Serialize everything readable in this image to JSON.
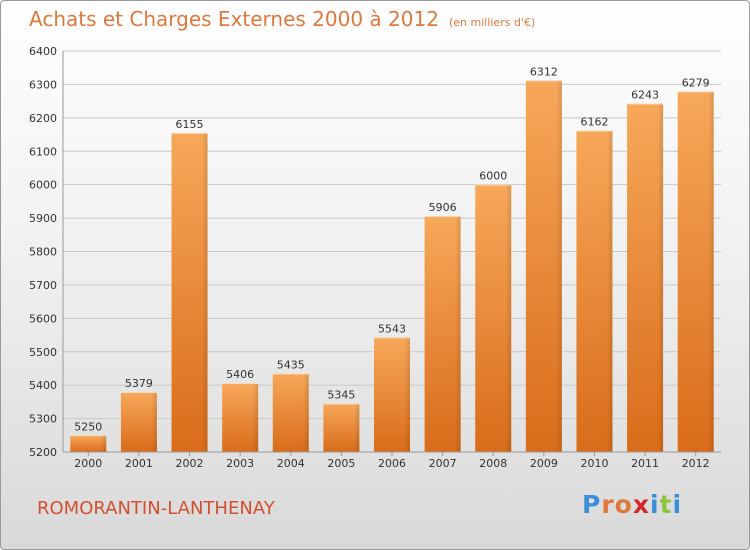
{
  "header": {
    "title": "Achats et Charges Externes 2000 à 2012",
    "subtitle": "(en milliers d'€)"
  },
  "commune": "ROMORANTIN-LANTHENAY",
  "logo": {
    "text": "Proxiti",
    "colors": [
      "#3b8fd8",
      "#e0783c",
      "#e0783c",
      "#d4282a",
      "#3b8fd8",
      "#8cc63f",
      "#3b8fd8"
    ]
  },
  "colors": {
    "bar_top": "#f7a85a",
    "bar_bottom": "#d96c1a",
    "accent": "#e0783c"
  },
  "chart_data": {
    "type": "bar",
    "title": "Achats et Charges Externes 2000 à 2012",
    "subtitle": "(en milliers d'€)",
    "categories": [
      "2000",
      "2001",
      "2002",
      "2003",
      "2004",
      "2005",
      "2006",
      "2007",
      "2008",
      "2009",
      "2010",
      "2011",
      "2012"
    ],
    "values": [
      5250,
      5379,
      6155,
      5406,
      5435,
      5345,
      5543,
      5906,
      6000,
      6312,
      6162,
      6243,
      6279
    ],
    "ylim": [
      5200,
      6400
    ],
    "yticks": [
      5200,
      5300,
      5400,
      5500,
      5600,
      5700,
      5800,
      5900,
      6000,
      6100,
      6200,
      6300,
      6400
    ],
    "grid": true,
    "xlabel": "",
    "ylabel": ""
  }
}
